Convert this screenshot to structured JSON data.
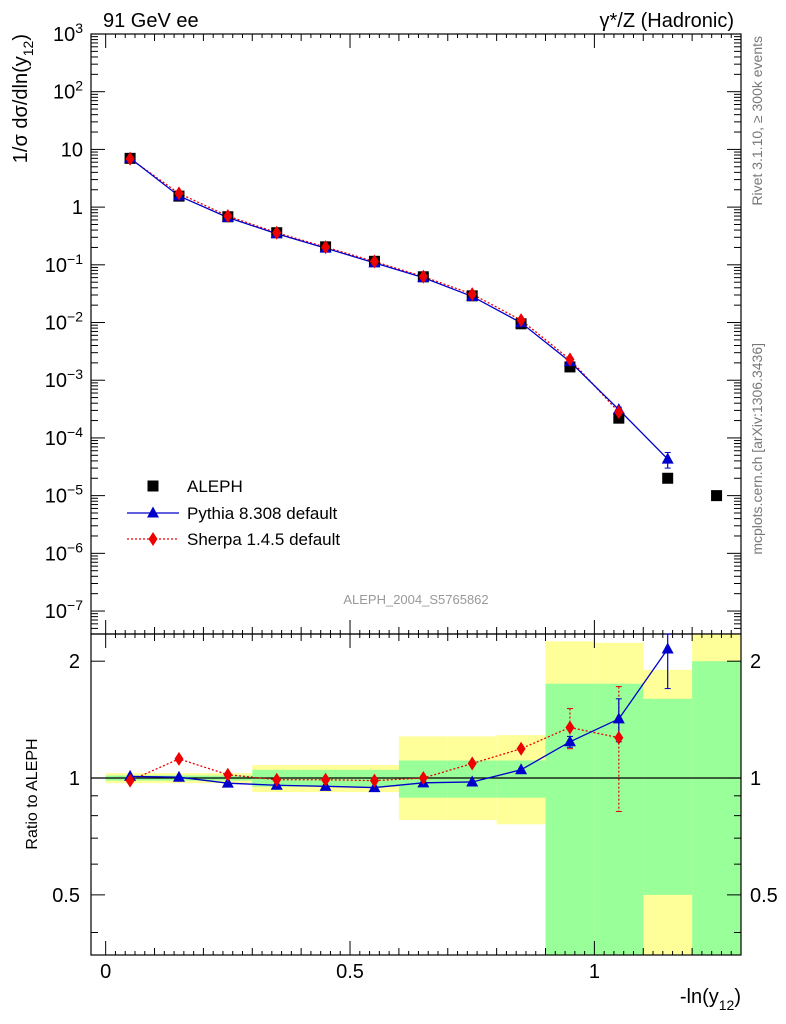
{
  "header": {
    "left_title": "91 GeV ee",
    "right_title": "γ*/Z (Hadronic)"
  },
  "side_labels": {
    "rivet": "Rivet 3.1.10, ≥ 300k events",
    "mcplots": "mcplots.cern.ch [arXiv:1306.3436]"
  },
  "analysis_label": "ALEPH_2004_S5765862",
  "colors": {
    "data": "#000000",
    "pythia": "#0000cc",
    "sherpa": "#ee0000",
    "band_inner": "#99ff99",
    "band_outer": "#ffff99"
  },
  "chart_data": [
    {
      "type": "scatter",
      "panel": "main",
      "ylabel": "1/σ  dσ/dln(y12)",
      "yscale": "log",
      "ylim": [
        4e-08,
        1000
      ],
      "xlim": [
        -0.03,
        1.3
      ],
      "ytick_labels": [
        "10^-7",
        "10^-6",
        "10^-5",
        "10^-4",
        "10^-3",
        "10^-2",
        "10^-1",
        "1",
        "10",
        "10^2",
        "10^3"
      ],
      "legend": [
        "ALEPH",
        "Pythia 8.308 default",
        "Sherpa 1.4.5 default"
      ],
      "legend_position": "bottom-left",
      "series": [
        {
          "name": "ALEPH",
          "marker": "square",
          "x": [
            0.05,
            0.15,
            0.25,
            0.35,
            0.45,
            0.55,
            0.65,
            0.75,
            0.85,
            0.95,
            1.05,
            1.15,
            1.25
          ],
          "y": [
            7.0,
            1.55,
            0.68,
            0.36,
            0.205,
            0.115,
            0.062,
            0.029,
            0.0095,
            0.0017,
            0.00022,
            2e-05,
            1e-05
          ]
        },
        {
          "name": "Pythia 8.308 default",
          "marker": "triangle",
          "x": [
            0.05,
            0.15,
            0.25,
            0.35,
            0.45,
            0.55,
            0.65,
            0.75,
            0.85,
            0.95,
            1.05,
            1.15
          ],
          "y": [
            7.05,
            1.56,
            0.66,
            0.345,
            0.195,
            0.108,
            0.06,
            0.0283,
            0.0099,
            0.0021,
            0.00031,
            4.3e-05
          ],
          "yerr": [
            0,
            0,
            0,
            0,
            0,
            0,
            0,
            0,
            0,
            0,
            3e-05,
            1.3e-05
          ]
        },
        {
          "name": "Sherpa 1.4.5 default",
          "marker": "diamond",
          "x": [
            0.05,
            0.15,
            0.25,
            0.35,
            0.45,
            0.55,
            0.65,
            0.75,
            0.85,
            0.95,
            1.05
          ],
          "y": [
            6.9,
            1.73,
            0.7,
            0.36,
            0.203,
            0.114,
            0.0625,
            0.031,
            0.011,
            0.0023,
            0.00028
          ]
        }
      ]
    },
    {
      "type": "scatter",
      "panel": "ratio",
      "ylabel": "Ratio to ALEPH",
      "xlabel": "-ln(y12)",
      "yscale": "log",
      "ylim": [
        0.35,
        2.35
      ],
      "xlim": [
        -0.03,
        1.3
      ],
      "xtick_labels": [
        "0",
        "0.5",
        "1"
      ],
      "ytick_labels": [
        "0.5",
        "1",
        "2"
      ],
      "bands": {
        "x_edges": [
          0.0,
          0.1,
          0.2,
          0.3,
          0.4,
          0.5,
          0.6,
          0.7,
          0.8,
          0.9,
          1.0,
          1.1,
          1.2,
          1.3
        ],
        "inner_lo": [
          0.985,
          0.985,
          0.985,
          0.95,
          0.95,
          0.95,
          0.89,
          0.89,
          0.89,
          0.35,
          0.35,
          0.35,
          0.35
        ],
        "inner_hi": [
          1.015,
          1.015,
          1.015,
          1.05,
          1.05,
          1.05,
          1.11,
          1.11,
          1.11,
          1.75,
          1.75,
          1.6,
          2.0
        ],
        "outer_lo": [
          0.97,
          0.97,
          0.97,
          0.92,
          0.92,
          0.92,
          0.78,
          0.78,
          0.76,
          0.35,
          0.35,
          0.35,
          0.35
        ],
        "outer_hi": [
          1.03,
          1.03,
          1.03,
          1.08,
          1.08,
          1.08,
          1.28,
          1.28,
          1.29,
          2.25,
          2.23,
          1.9,
          2.35
        ],
        "hole_x": [
          1.1,
          1.2
        ],
        "hole_range": [
          0.35,
          0.5
        ]
      },
      "series": [
        {
          "name": "Pythia 8.308 default",
          "marker": "triangle",
          "x": [
            0.05,
            0.15,
            0.25,
            0.35,
            0.45,
            0.55,
            0.65,
            0.75,
            0.85,
            0.95,
            1.05,
            1.15
          ],
          "y": [
            1.01,
            1.005,
            0.97,
            0.958,
            0.952,
            0.945,
            0.972,
            0.977,
            1.05,
            1.24,
            1.42,
            2.15
          ],
          "yerr": [
            0,
            0,
            0,
            0,
            0,
            0,
            0,
            0,
            0,
            0.04,
            0.18,
            0.45
          ]
        },
        {
          "name": "Sherpa 1.4.5 default",
          "marker": "diamond",
          "x": [
            0.05,
            0.15,
            0.25,
            0.35,
            0.45,
            0.55,
            0.65,
            0.75,
            0.85,
            0.95,
            1.05
          ],
          "y": [
            0.985,
            1.12,
            1.02,
            0.99,
            0.99,
            0.985,
            1.0,
            1.09,
            1.19,
            1.35,
            1.27
          ],
          "yerr": [
            0,
            0,
            0,
            0,
            0,
            0,
            0,
            0,
            0,
            0.16,
            0.45
          ]
        }
      ]
    }
  ]
}
